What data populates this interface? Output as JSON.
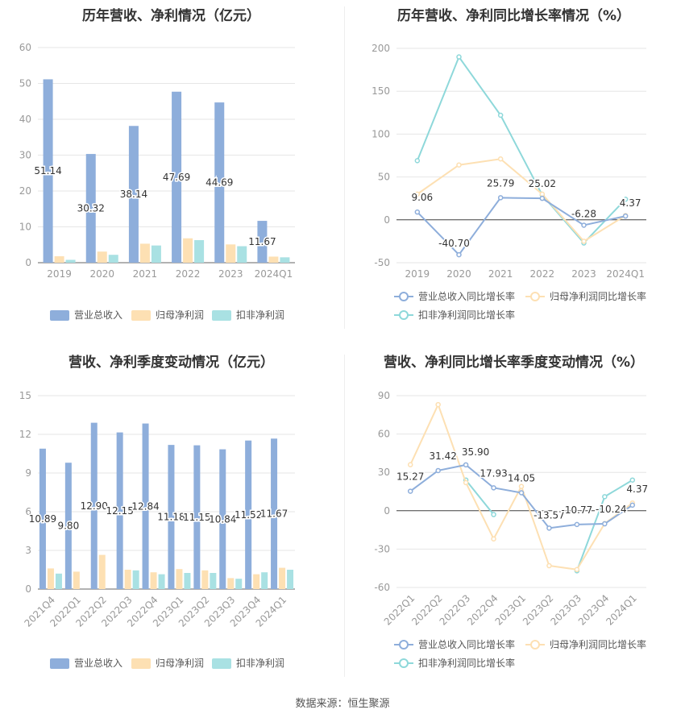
{
  "source": "数据来源：恒生聚源",
  "colors": {
    "revenue": "#8eaedb",
    "netprofit": "#fde0b3",
    "deducted": "#a9e1e3",
    "line_revenue": "#8eaedb",
    "line_netprofit": "#fde0b3",
    "line_deducted": "#8ed8da",
    "axis": "#999999",
    "grid": "#e6e6e6",
    "text": "#333333"
  },
  "chart_data": [
    {
      "type": "bar",
      "title": "历年营收、净利情况（亿元）",
      "categories": [
        "2019",
        "2020",
        "2021",
        "2022",
        "2023",
        "2024Q1"
      ],
      "ylim": [
        0,
        60
      ],
      "yticks": [
        "0",
        "10",
        "20",
        "30",
        "40",
        "50",
        "60"
      ],
      "series": [
        {
          "name": "营业总收入",
          "values": [
            51.14,
            30.32,
            38.14,
            47.69,
            44.69,
            11.67
          ],
          "labels": [
            "51.14",
            "30.32",
            "38.14",
            "47.69",
            "44.69",
            "11.67"
          ]
        },
        {
          "name": "归母净利润",
          "values": [
            1.8,
            3.1,
            5.3,
            6.8,
            5.1,
            1.7
          ]
        },
        {
          "name": "扣非净利润",
          "values": [
            0.8,
            2.2,
            4.8,
            6.3,
            4.6,
            1.5
          ]
        }
      ],
      "legend": "bottom",
      "grid": true
    },
    {
      "type": "line",
      "title": "历年营收、净利同比增长率情况（%）",
      "categories": [
        "2019",
        "2020",
        "2021",
        "2022",
        "2023",
        "2024Q1"
      ],
      "ylim": [
        -50,
        200
      ],
      "yticks": [
        "-50",
        "0",
        "50",
        "100",
        "150",
        "200"
      ],
      "series": [
        {
          "name": "营业总收入同比增长率",
          "values": [
            9.06,
            -40.7,
            25.79,
            25.02,
            -6.28,
            4.37
          ],
          "labels": [
            "9.06",
            "-40.70",
            "25.79",
            "25.02",
            "-6.28",
            "4.37"
          ]
        },
        {
          "name": "归母净利润同比增长率",
          "values": [
            30,
            64,
            71,
            30,
            -25,
            5
          ]
        },
        {
          "name": "扣非净利润同比增长率",
          "values": [
            69,
            190,
            122,
            29,
            -27,
            24
          ]
        }
      ],
      "legend": "bottom",
      "grid": true
    },
    {
      "type": "bar",
      "title": "营收、净利季度变动情况（亿元）",
      "categories": [
        "2021Q4",
        "2022Q1",
        "2022Q2",
        "2022Q3",
        "2022Q4",
        "2023Q1",
        "2023Q2",
        "2023Q3",
        "2023Q4",
        "2024Q1"
      ],
      "ylim": [
        0,
        15
      ],
      "yticks": [
        "0",
        "3",
        "6",
        "9",
        "12",
        "15"
      ],
      "series": [
        {
          "name": "营业总收入",
          "values": [
            10.89,
            9.8,
            12.9,
            12.15,
            12.84,
            11.18,
            11.15,
            10.84,
            11.52,
            11.67
          ],
          "labels": [
            "10.89",
            "9.80",
            "12.90",
            "12.15",
            "12.84",
            "11.18",
            "11.15",
            "10.84",
            "11.52",
            "11.67"
          ]
        },
        {
          "name": "归母净利润",
          "values": [
            1.6,
            1.35,
            2.65,
            1.5,
            1.3,
            1.55,
            1.45,
            0.85,
            1.15,
            1.65
          ]
        },
        {
          "name": "扣非净利润",
          "values": [
            1.2,
            null,
            null,
            1.45,
            1.15,
            1.25,
            1.25,
            0.8,
            1.3,
            1.5
          ]
        }
      ],
      "legend": "bottom",
      "grid": true
    },
    {
      "type": "line",
      "title": "营收、净利同比增长率季度变动情况（%）",
      "categories": [
        "2022Q1",
        "2022Q2",
        "2022Q3",
        "2022Q4",
        "2023Q1",
        "2023Q2",
        "2023Q3",
        "2023Q4",
        "2024Q1"
      ],
      "ylim": [
        -60,
        90
      ],
      "yticks": [
        "-60",
        "-30",
        "0",
        "30",
        "60",
        "90"
      ],
      "series": [
        {
          "name": "营业总收入同比增长率",
          "values": [
            15.27,
            31.42,
            35.9,
            17.93,
            14.05,
            -13.57,
            -10.77,
            -10.24,
            4.37
          ],
          "labels": [
            "15.27",
            "31.42",
            "35.90",
            "17.93",
            "14.05",
            "-13.57",
            "-10.77",
            "-10.24",
            "4.37"
          ]
        },
        {
          "name": "归母净利润同比增长率",
          "values": [
            36,
            83,
            22,
            -22,
            19,
            -43,
            -46,
            -10,
            6
          ]
        },
        {
          "name": "扣非净利润同比增长率",
          "values": [
            null,
            null,
            24,
            -3,
            null,
            null,
            -47,
            11,
            24
          ]
        }
      ],
      "legend": "bottom",
      "grid": true
    }
  ]
}
